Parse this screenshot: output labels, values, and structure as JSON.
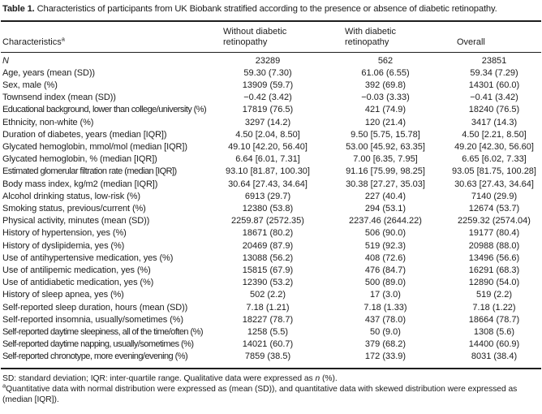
{
  "table": {
    "caption_label": "Table 1.",
    "caption_text": " Characteristics of participants from UK Biobank stratified according to the presence or absence of diabetic retinopathy.",
    "header": {
      "characteristics": "Characteristics",
      "characteristics_sup": "a",
      "without_line1": "Without diabetic",
      "without_line2": "retinopathy",
      "with_line1": "With diabetic",
      "with_line2": "retinopathy",
      "overall": "Overall"
    },
    "rows": [
      {
        "label": "N",
        "without": "23289",
        "with": "562",
        "overall": "23851"
      },
      {
        "label": "Age, years (mean (SD))",
        "without": "59.30 (7.30)",
        "with": "61.06 (6.55)",
        "overall": "59.34 (7.29)"
      },
      {
        "label": "Sex, male (%)",
        "without": "13909 (59.7)",
        "with": "392 (69.8)",
        "overall": "14301 (60.0)"
      },
      {
        "label": "Townsend index (mean (SD))",
        "without": "−0.42 (3.42)",
        "with": "−0.03 (3.33)",
        "overall": "−0.41 (3.42)"
      },
      {
        "label": "Educational background, lower than college/university (%)",
        "without": "17819 (76.5)",
        "with": "421 (74.9)",
        "overall": "18240 (76.5)"
      },
      {
        "label": "Ethnicity, non-white (%)",
        "without": "3297 (14.2)",
        "with": "120 (21.4)",
        "overall": "3417 (14.3)"
      },
      {
        "label": "Duration of diabetes, years (median [IQR])",
        "without": "4.50 [2.04, 8.50]",
        "with": "9.50 [5.75, 15.78]",
        "overall": "4.50 [2.21, 8.50]"
      },
      {
        "label": "Glycated hemoglobin, mmol/mol (median [IQR])",
        "without": "49.10 [42.20, 56.40]",
        "with": "53.00 [45.92, 63.35]",
        "overall": "49.20 [42.30, 56.60]"
      },
      {
        "label": "Glycated hemoglobin, % (median [IQR])",
        "without": "6.64 [6.01, 7.31]",
        "with": "7.00 [6.35, 7.95]",
        "overall": "6.65 [6.02, 7.33]"
      },
      {
        "label": "Estimated glomerular filtration rate (median [IQR])",
        "without": "93.10 [81.87, 100.30]",
        "with": "91.16 [75.99, 98.25]",
        "overall": "93.05 [81.75, 100.28]"
      },
      {
        "label": "Body mass index, kg/m2 (median [IQR])",
        "without": "30.64 [27.43, 34.64]",
        "with": "30.38 [27.27, 35.03]",
        "overall": "30.63 [27.43, 34.64]"
      },
      {
        "label": "Alcohol drinking status, low-risk (%)",
        "without": "6913 (29.7)",
        "with": "227 (40.4)",
        "overall": "7140 (29.9)"
      },
      {
        "label": "Smoking status, previous/current (%)",
        "without": "12380 (53.8)",
        "with": "294 (53.1)",
        "overall": "12674 (53.7)"
      },
      {
        "label": "Physical activity, minutes (mean (SD))",
        "without": "2259.87 (2572.35)",
        "with": "2237.46 (2644.22)",
        "overall": "2259.32 (2574.04)"
      },
      {
        "label": "History of hypertension, yes (%)",
        "without": "18671 (80.2)",
        "with": "506 (90.0)",
        "overall": "19177 (80.4)"
      },
      {
        "label": "History of dyslipidemia, yes (%)",
        "without": "20469 (87.9)",
        "with": "519 (92.3)",
        "overall": "20988 (88.0)"
      },
      {
        "label": "Use of antihypertensive medication, yes (%)",
        "without": "13088 (56.2)",
        "with": "408 (72.6)",
        "overall": "13496 (56.6)"
      },
      {
        "label": "Use of antilipemic medication, yes (%)",
        "without": "15815 (67.9)",
        "with": "476 (84.7)",
        "overall": "16291 (68.3)"
      },
      {
        "label": "Use of antidiabetic medication, yes (%)",
        "without": "12390 (53.2)",
        "with": "500 (89.0)",
        "overall": "12890 (54.0)"
      },
      {
        "label": "History of sleep apnea, yes (%)",
        "without": "502 (2.2)",
        "with": "17 (3.0)",
        "overall": "519 (2.2)"
      },
      {
        "label": "Self-reported sleep duration, hours (mean (SD))",
        "without": "7.18 (1.21)",
        "with": "7.18 (1.33)",
        "overall": "7.18 (1.22)"
      },
      {
        "label": "Self-reported insomnia, usually/sometimes (%)",
        "without": "18227 (78.7)",
        "with": "437 (78.0)",
        "overall": "18664 (78.7)"
      },
      {
        "label": "Self-reported daytime sleepiness, all of the time/often (%)",
        "without": "1258 (5.5)",
        "with": "50 (9.0)",
        "overall": "1308 (5.6)"
      },
      {
        "label": "Self-reported daytime napping, usually/sometimes (%)",
        "without": "14021 (60.7)",
        "with": "379 (68.2)",
        "overall": "14400 (60.9)"
      },
      {
        "label": "Self-reported chronotype, more evening/evening (%)",
        "without": "7859 (38.5)",
        "with": "172 (33.9)",
        "overall": "8031 (38.4)"
      }
    ],
    "footnotes": {
      "fn1_pre": "SD: standard deviation; IQR: inter-quartile range. Qualitative data were expressed as ",
      "fn1_italic": "n",
      "fn1_post": " (%).",
      "fn2_sup": "a",
      "fn2_text": "Quantitative data with normal distribution were expressed as (mean (SD)), and quantitative data with skewed distribution were expressed as (median [IQR])."
    }
  }
}
